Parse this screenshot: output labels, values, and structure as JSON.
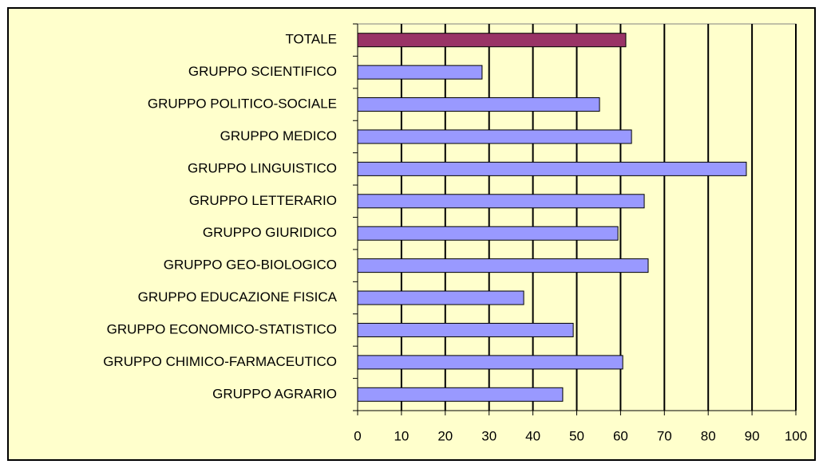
{
  "chart_data": {
    "type": "bar",
    "orientation": "horizontal",
    "categories": [
      "TOTALE",
      "GRUPPO SCIENTIFICO",
      "GRUPPO POLITICO-SOCIALE",
      "GRUPPO MEDICO",
      "GRUPPO LINGUISTICO",
      "GRUPPO LETTERARIO",
      "GRUPPO GIURIDICO",
      "GRUPPO GEO-BIOLOGICO",
      "GRUPPO EDUCAZIONE FISICA",
      "GRUPPO ECONOMICO-STATISTICO",
      "GRUPPO CHIMICO-FARMACEUTICO",
      "GRUPPO AGRARIO"
    ],
    "values": [
      61.2,
      28.4,
      55.2,
      62.5,
      88.7,
      65.4,
      59.4,
      66.3,
      37.9,
      49.2,
      60.5,
      46.8
    ],
    "colors": [
      "#993366",
      "#9999ff",
      "#9999ff",
      "#9999ff",
      "#9999ff",
      "#9999ff",
      "#9999ff",
      "#9999ff",
      "#9999ff",
      "#9999ff",
      "#9999ff",
      "#9999ff"
    ],
    "xlim": [
      0,
      100
    ],
    "xticks": [
      0,
      10,
      20,
      30,
      40,
      50,
      60,
      70,
      80,
      90,
      100
    ],
    "grid": true
  }
}
